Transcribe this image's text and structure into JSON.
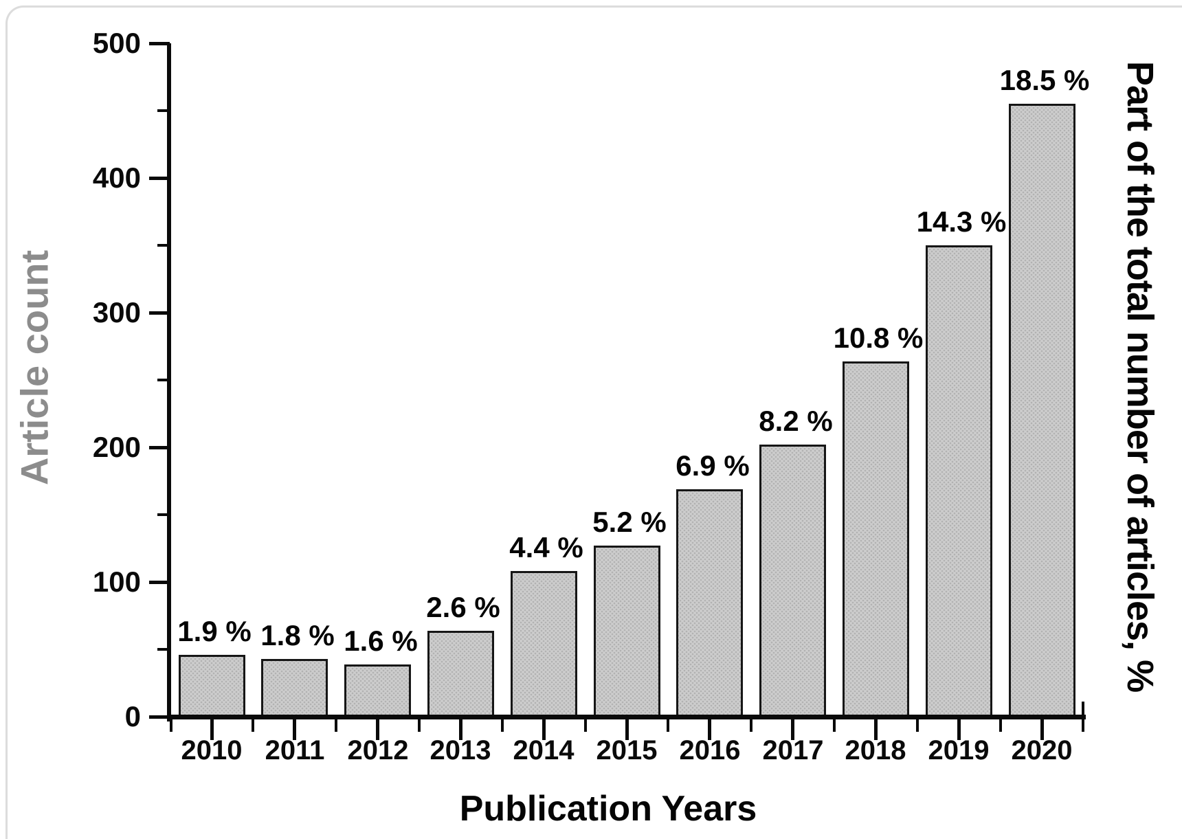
{
  "chart_data": {
    "type": "bar",
    "title": "",
    "xlabel": "Publication Years",
    "ylabel_left": "Article count",
    "ylabel_right": "Part of the total number of articles, %",
    "categories": [
      "2010",
      "2011",
      "2012",
      "2013",
      "2014",
      "2015",
      "2016",
      "2017",
      "2018",
      "2019",
      "2020"
    ],
    "values": [
      46,
      43,
      39,
      64,
      108,
      127,
      169,
      202,
      264,
      350,
      455
    ],
    "bar_labels": [
      "1.9 %",
      "1.8 %",
      "1.6 %",
      "2.6 %",
      "4.4 %",
      "5.2 %",
      "6.9 %",
      "8.2 %",
      "10.8 %",
      "14.3 %",
      "18.5 %"
    ],
    "ylim": [
      0,
      500
    ],
    "ytick_major": [
      0,
      100,
      200,
      300,
      400,
      500
    ],
    "ytick_minor": [
      50,
      150,
      250,
      350,
      450
    ],
    "grid": false,
    "legend": "none",
    "bar_fill_color": "#cdcdcd",
    "bar_border_color": "#161616",
    "axis_color": "#0a0a0a",
    "left_label_color": "#8c8c8c",
    "text_color": "#050505"
  }
}
